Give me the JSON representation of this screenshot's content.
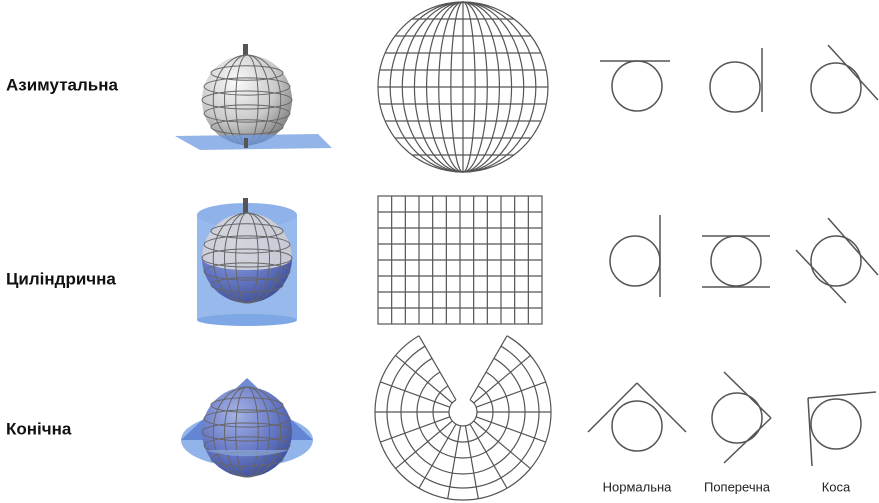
{
  "rows": [
    {
      "label": "Азимутальна"
    },
    {
      "label": "Циліндрична"
    },
    {
      "label": "Конічна"
    }
  ],
  "columns": [
    "Нормальна",
    "Поперечна",
    "Коса"
  ]
}
